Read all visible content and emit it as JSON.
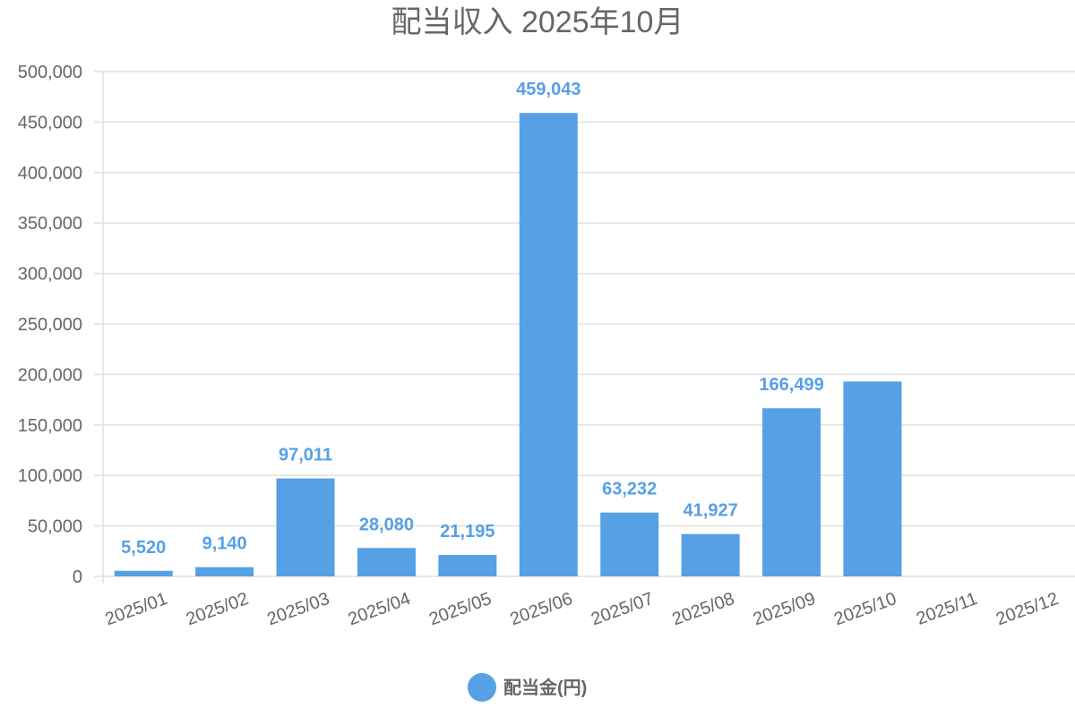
{
  "chart_data": {
    "type": "bar",
    "title": "配当収入 2025年10月",
    "categories": [
      "2025/01",
      "2025/02",
      "2025/03",
      "2025/04",
      "2025/05",
      "2025/06",
      "2025/07",
      "2025/08",
      "2025/09",
      "2025/10",
      "2025/11",
      "2025/12"
    ],
    "series": [
      {
        "name": "配当金(円)",
        "color": "#56a0e5",
        "values": [
          5520,
          9140,
          97011,
          28080,
          21195,
          459043,
          63232,
          41927,
          166499,
          193000,
          null,
          null
        ],
        "data_labels": [
          "5,520",
          "9,140",
          "97,011",
          "28,080",
          "21,195",
          "459,043",
          "63,232",
          "41,927",
          "166,499",
          "",
          "",
          ""
        ]
      }
    ],
    "ylim": [
      0,
      500000
    ],
    "yticks": [
      "0",
      "50,000",
      "100,000",
      "150,000",
      "200,000",
      "250,000",
      "300,000",
      "350,000",
      "400,000",
      "450,000",
      "500,000"
    ],
    "ytick_values": [
      0,
      50000,
      100000,
      150000,
      200000,
      250000,
      300000,
      350000,
      400000,
      450000,
      500000
    ],
    "grid": true,
    "legend_position": "bottom",
    "xlabel": "",
    "ylabel": ""
  }
}
